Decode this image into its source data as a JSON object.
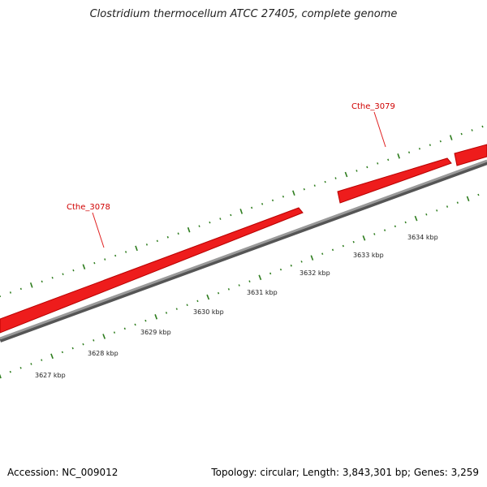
{
  "title": "Clostridium thermocellum ATCC 27405, complete genome",
  "footer": {
    "accession": "Accession: NC_009012",
    "summary": "Topology: circular; Length: 3,843,301 bp; Genes: 3,259"
  },
  "colors": {
    "gene": "#ee1c1c",
    "backbone": "#7f7f7f",
    "tick": "#2e7d1e",
    "gene_label": "#d00000"
  },
  "axis": {
    "unit": "kbp",
    "labels": [
      "3627 kbp",
      "3628 kbp",
      "3629 kbp",
      "3630 kbp",
      "3631 kbp",
      "3632 kbp",
      "3633 kbp",
      "3634 kbp"
    ]
  },
  "genes": [
    {
      "name": "Cthe_3078",
      "strand": "+"
    },
    {
      "name": "Cthe_3079",
      "strand": "+"
    }
  ]
}
